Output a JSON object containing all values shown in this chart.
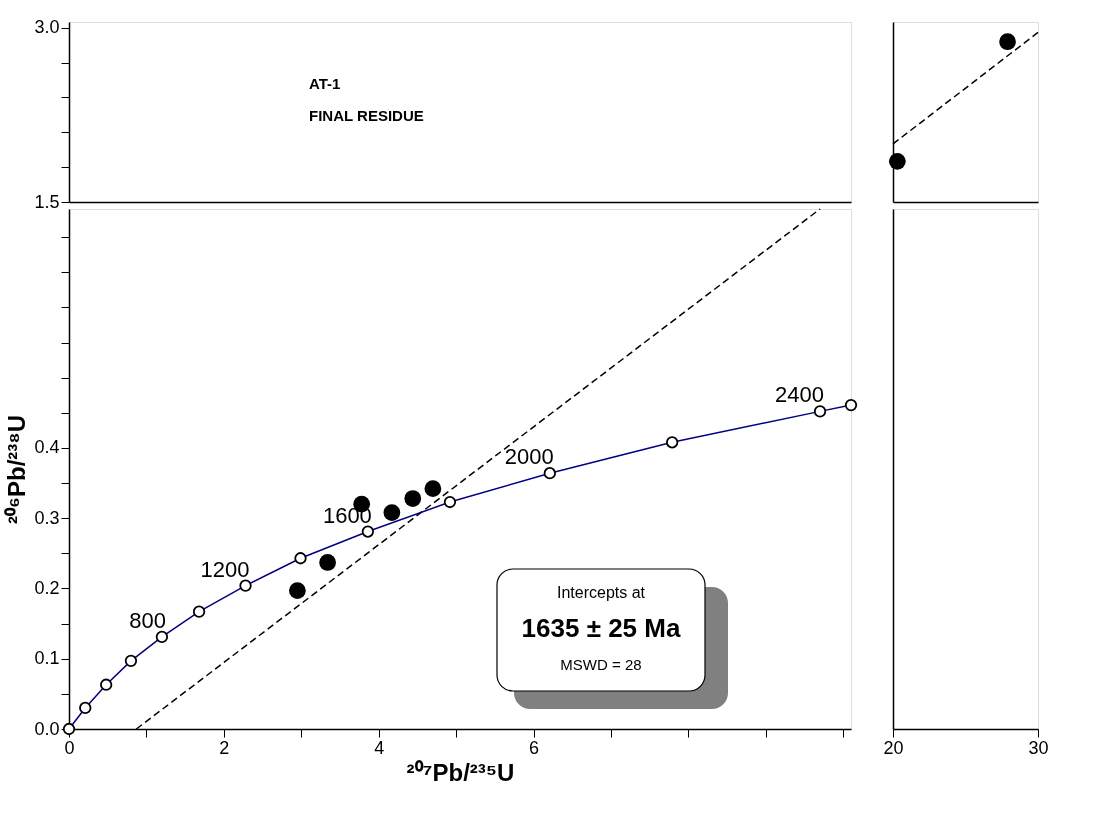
{
  "chart_data": [
    {
      "type": "scatter",
      "xlim": [
        0,
        10.1
      ],
      "ylim": [
        1.5,
        3.05
      ],
      "tick_labels": "y",
      "grid": false,
      "yticks": [
        {
          "value": 1.5,
          "label": "1.5"
        },
        {
          "value": 1.8,
          "label": null
        },
        {
          "value": 2.1,
          "label": null
        },
        {
          "value": 2.4,
          "label": null
        },
        {
          "value": 2.7,
          "label": null
        },
        {
          "value": 3.0,
          "label": "3.0"
        }
      ],
      "annotations": [
        "AT-1",
        "FINAL RESIDUE"
      ]
    },
    {
      "type": "scatter",
      "xlim": [
        20,
        30
      ],
      "ylim": [
        1.5,
        3.05
      ],
      "tick_labels": false,
      "grid": false,
      "series": [
        {
          "type": "line",
          "color": "#000000",
          "line_style": "dashed",
          "marker": "none",
          "x": [
            20,
            30
          ],
          "values": [
            2.0,
            2.96
          ]
        },
        {
          "color": "#000000",
          "marker": "circle",
          "x": [
            20.3,
            27.9
          ],
          "values": [
            1.85,
            2.88
          ]
        }
      ]
    },
    {
      "type": "scatter",
      "xlim": [
        0,
        10.1
      ],
      "ylim": [
        0,
        0.74
      ],
      "xlabel": "²⁰⁷Pb/²³⁵U",
      "ylabel": "²⁰⁶Pb/²³⁸U",
      "grid": false,
      "xticks": [
        0,
        2,
        4,
        6,
        {
          "value": 1,
          "label": null
        },
        {
          "value": 3,
          "label": null
        },
        {
          "value": 5,
          "label": null
        },
        {
          "value": 7,
          "label": null
        },
        {
          "value": 8,
          "label": null
        },
        {
          "value": 9,
          "label": null
        },
        {
          "value": 10,
          "label": null
        }
      ],
      "yticks": [
        {
          "value": 0,
          "label": "0.0"
        },
        {
          "value": 0.05,
          "label": null
        },
        {
          "value": 0.1,
          "label": "0.1"
        },
        {
          "value": 0.15,
          "label": null
        },
        {
          "value": 0.2,
          "label": "0.2"
        },
        {
          "value": 0.25,
          "label": null
        },
        {
          "value": 0.3,
          "label": "0.3"
        },
        {
          "value": 0.35,
          "label": null
        },
        {
          "value": 0.4,
          "label": "0.4"
        },
        {
          "value": 0.45,
          "label": null
        },
        {
          "value": 0.5,
          "label": null
        },
        {
          "value": 0.55,
          "label": null
        },
        {
          "value": 0.6,
          "label": null
        },
        {
          "value": 0.65,
          "label": null
        },
        {
          "value": 0.7,
          "label": null
        }
      ],
      "annotations": [
        "Intercepts at",
        "1635 ± 25 Ma",
        "MSWD = 28",
        {
          "text": "800",
          "x": 1.2,
          "y": 0.131
        },
        {
          "text": "1200",
          "x": 2.28,
          "y": 0.204
        },
        {
          "text": "1600",
          "x": 3.86,
          "y": 0.281
        },
        {
          "text": "2000",
          "x": 6.21,
          "y": 0.364
        },
        {
          "text": "2400",
          "x": 9.7,
          "y": 0.452
        }
      ],
      "series": [
        {
          "type": "line",
          "color": "#000000",
          "line_style": "dashed",
          "marker": "none",
          "x": [
            0.87,
            9.7
          ],
          "values": [
            0,
            0.74
          ]
        },
        {
          "type": "line",
          "color": "#000080",
          "line_style": "solid",
          "marker": "circle",
          "x": [
            0,
            0.21,
            0.48,
            0.8,
            1.2,
            1.68,
            2.28,
            2.99,
            3.86,
            4.92,
            6.21,
            7.79,
            9.7,
            10.1
          ],
          "values": [
            0,
            0.03,
            0.063,
            0.097,
            0.131,
            0.167,
            0.204,
            0.243,
            0.281,
            0.323,
            0.364,
            0.408,
            0.452,
            0.461
          ]
        },
        {
          "color": "#000000",
          "marker": "circle",
          "x": [
            2.95,
            3.34,
            3.78,
            4.17,
            4.44,
            4.7
          ],
          "values": [
            0.197,
            0.237,
            0.32,
            0.308,
            0.328,
            0.342
          ]
        }
      ]
    },
    {
      "type": "scatter",
      "xlim": [
        20,
        30
      ],
      "ylim": [
        0,
        0.74
      ],
      "tick_labels": "x",
      "grid": false,
      "xticks": [
        20,
        30
      ]
    }
  ]
}
